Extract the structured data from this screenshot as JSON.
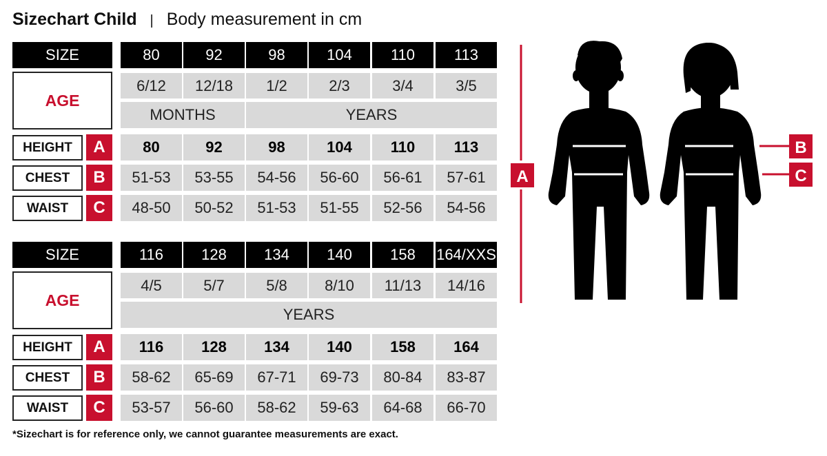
{
  "title": {
    "bold": "Sizechart Child",
    "separator": "|",
    "subtitle": "Body measurement in cm"
  },
  "labels": {
    "size": "SIZE",
    "age": "AGE",
    "height": "HEIGHT",
    "chest": "CHEST",
    "waist": "WAIST",
    "letter_height": "A",
    "letter_chest": "B",
    "letter_waist": "C"
  },
  "tables": [
    {
      "sizes": [
        "80",
        "92",
        "98",
        "104",
        "110",
        "113"
      ],
      "ages": [
        "6/12",
        "12/18",
        "1/2",
        "2/3",
        "3/4",
        "3/5"
      ],
      "age_units": [
        {
          "label": "MONTHS",
          "span": 2
        },
        {
          "label": "YEARS",
          "span": 4
        }
      ],
      "height": [
        "80",
        "92",
        "98",
        "104",
        "110",
        "113"
      ],
      "chest": [
        "51-53",
        "53-55",
        "54-56",
        "56-60",
        "56-61",
        "57-61"
      ],
      "waist": [
        "48-50",
        "50-52",
        "51-53",
        "51-55",
        "52-56",
        "54-56"
      ]
    },
    {
      "sizes": [
        "116",
        "128",
        "134",
        "140",
        "158",
        "164/XXS"
      ],
      "ages": [
        "4/5",
        "5/7",
        "5/8",
        "8/10",
        "11/13",
        "14/16"
      ],
      "age_units": [
        {
          "label": "YEARS",
          "span": 6
        }
      ],
      "height": [
        "116",
        "128",
        "134",
        "140",
        "158",
        "164"
      ],
      "chest": [
        "58-62",
        "65-69",
        "67-71",
        "69-73",
        "80-84",
        "83-87"
      ],
      "waist": [
        "53-57",
        "56-60",
        "58-62",
        "59-63",
        "64-68",
        "66-70"
      ]
    }
  ],
  "figure": {
    "marker_height": "A",
    "marker_chest": "B",
    "marker_waist": "C"
  },
  "footnote": "*Sizechart is for reference only, we cannot guarantee measurements are exact.",
  "colors": {
    "accent_red": "#c8102e",
    "header_black": "#000000",
    "cell_gray": "#d9d9d9"
  }
}
